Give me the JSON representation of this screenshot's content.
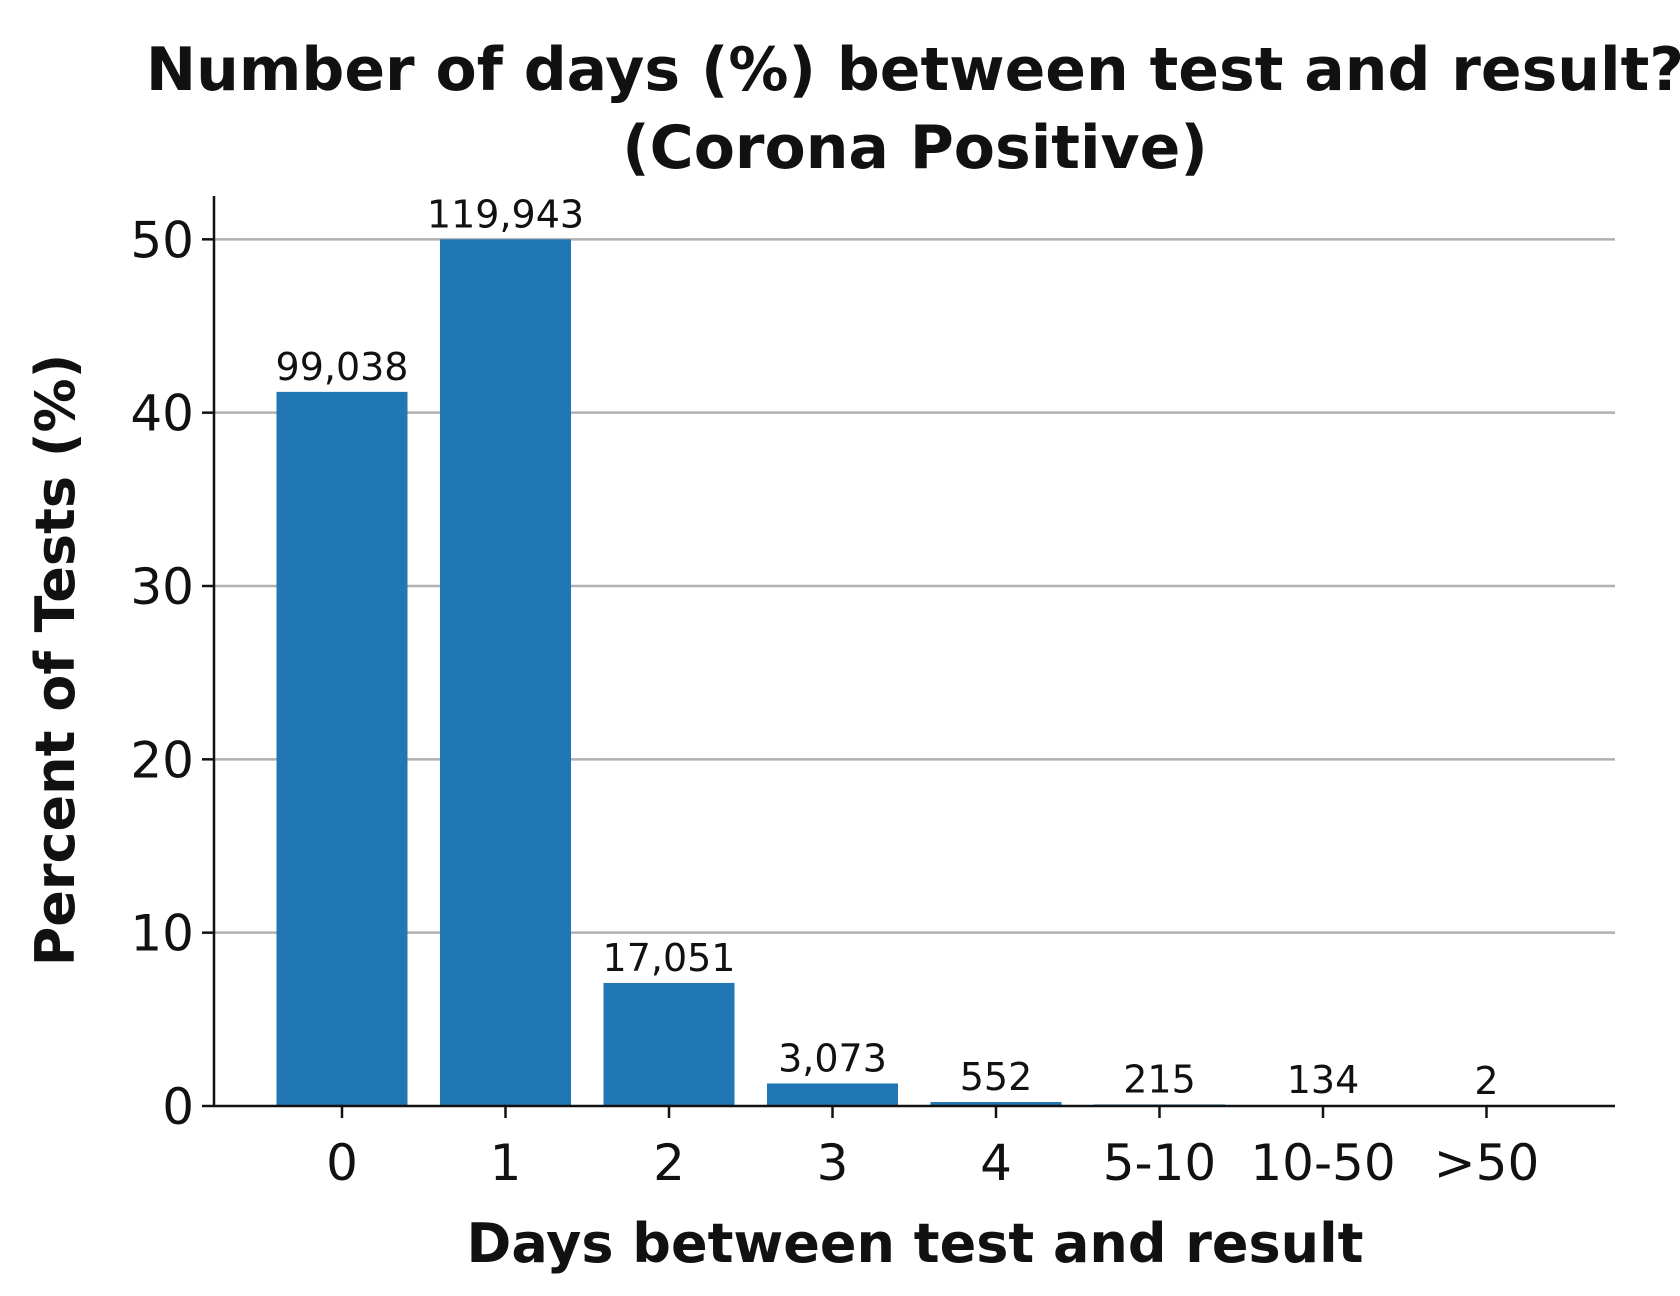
{
  "chart_data": {
    "type": "bar",
    "title_lines": [
      "Number of days (%) between test and result?",
      "(Corona Positive)"
    ],
    "xlabel": "Days between test and result",
    "ylabel": "Percent of Tests (%)",
    "categories": [
      "0",
      "1",
      "2",
      "3",
      "4",
      "5-10",
      "10-50",
      ">50"
    ],
    "values": [
      41.2,
      50.0,
      7.1,
      1.3,
      0.23,
      0.09,
      0.056,
      0.001
    ],
    "data_labels": [
      "99,038",
      "119,943",
      "17,051",
      "3,073",
      "552",
      "215",
      "134",
      "2"
    ],
    "ylim": [
      0,
      52.5
    ],
    "yticks": [
      0,
      10,
      20,
      30,
      40,
      50
    ],
    "grid": "horizontal",
    "legend": "none",
    "bar_color": "#2176b4",
    "grid_color": "#b0b0b0"
  }
}
